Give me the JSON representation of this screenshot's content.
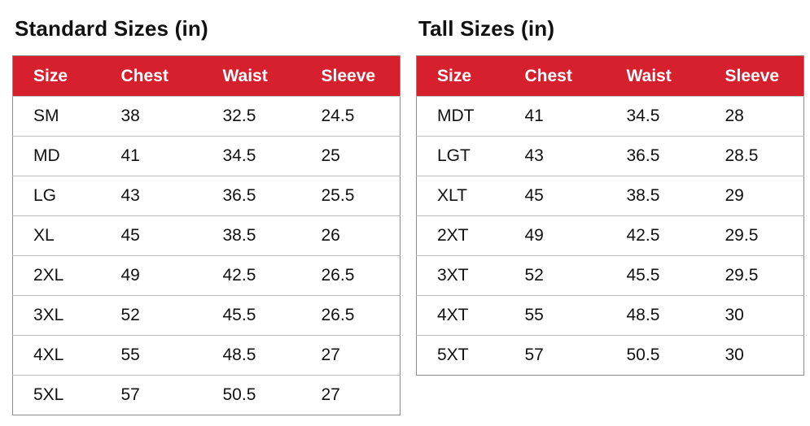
{
  "colors": {
    "header_bg": "#d6202e",
    "header_text": "#ffffff",
    "row_border": "#bcbcbc",
    "outer_border": "#8c8c8c",
    "text": "#111111"
  },
  "chart_data": [
    {
      "type": "table",
      "title": "Standard Sizes (in)",
      "columns": [
        "Size",
        "Chest",
        "Waist",
        "Sleeve"
      ],
      "rows": [
        [
          "SM",
          "38",
          "32.5",
          "24.5"
        ],
        [
          "MD",
          "41",
          "34.5",
          "25"
        ],
        [
          "LG",
          "43",
          "36.5",
          "25.5"
        ],
        [
          "XL",
          "45",
          "38.5",
          "26"
        ],
        [
          "2XL",
          "49",
          "42.5",
          "26.5"
        ],
        [
          "3XL",
          "52",
          "45.5",
          "26.5"
        ],
        [
          "4XL",
          "55",
          "48.5",
          "27"
        ],
        [
          "5XL",
          "57",
          "50.5",
          "27"
        ]
      ]
    },
    {
      "type": "table",
      "title": "Tall Sizes (in)",
      "columns": [
        "Size",
        "Chest",
        "Waist",
        "Sleeve"
      ],
      "rows": [
        [
          "MDT",
          "41",
          "34.5",
          "28"
        ],
        [
          "LGT",
          "43",
          "36.5",
          "28.5"
        ],
        [
          "XLT",
          "45",
          "38.5",
          "29"
        ],
        [
          "2XT",
          "49",
          "42.5",
          "29.5"
        ],
        [
          "3XT",
          "52",
          "45.5",
          "29.5"
        ],
        [
          "4XT",
          "55",
          "48.5",
          "30"
        ],
        [
          "5XT",
          "57",
          "50.5",
          "30"
        ]
      ]
    }
  ]
}
